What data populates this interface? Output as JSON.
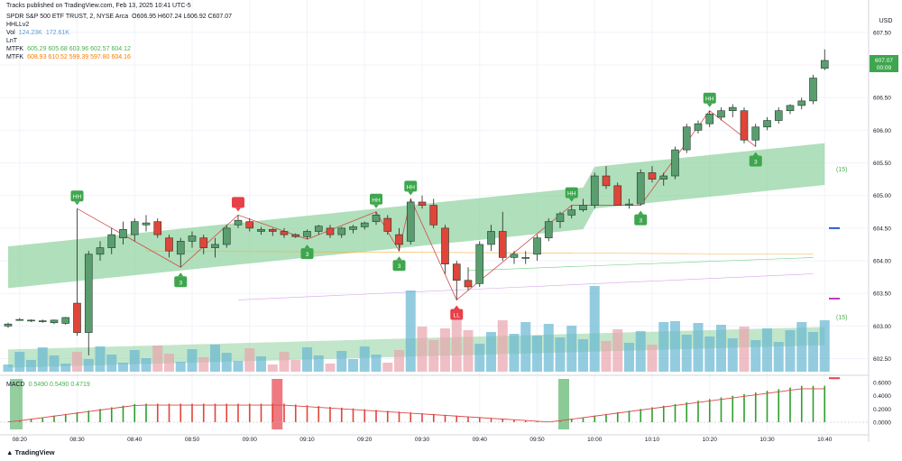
{
  "header": {
    "published": "Tracks published on TradingView.com, Feb 13, 2025 10:41 UTC-5",
    "symbol_line": "SPDR S&P 500 ETF TRUST, 2, NYSE Arca",
    "ohlc": "O606.95 H607.24 L606.92 C607.07",
    "ind1": "HHLLv2",
    "vol_label": "Vol",
    "vol_val1": "124.23K",
    "vol_val2": "172.61K",
    "ind3": "LnT",
    "mtfk1_label": "MTFK",
    "mtfk1_vals": "605.29 605.68 603.96 602.57 604.12",
    "mtfk2_label": "MTFK",
    "mtfk2_vals": "608.93 610.52 599.39 597.80 604.16",
    "macd_label": "MACD",
    "macd_vals": "0.5490 0.5490 0.4719"
  },
  "price_axis": {
    "currency": "USD",
    "ticks": [
      "607.50",
      "607.00",
      "606.50",
      "606.00",
      "605.50",
      "605.00",
      "604.50",
      "604.00",
      "603.50",
      "603.00",
      "602.50"
    ],
    "last_price": "607.07",
    "countdown": "00:09"
  },
  "macd_axis": {
    "ticks": [
      "0.6000",
      "0.4000",
      "0.2000",
      "0.0000"
    ]
  },
  "time_axis": {
    "ticks": [
      "08:20",
      "08:30",
      "08:40",
      "08:50",
      "09:00",
      "09:10",
      "09:20",
      "09:30",
      "09:40",
      "09:50",
      "10:00",
      "10:10",
      "10:20",
      "10:30",
      "10:40"
    ]
  },
  "band_labels": {
    "upper": "(15)",
    "lower": "(15)"
  },
  "footer": {
    "brand": "TradingView"
  },
  "colors": {
    "up": "#5a9e6f",
    "down": "#e0453a",
    "band": "#8fd19e",
    "vol_blue": "#67b7d1",
    "vol_pink": "#e8a4ad",
    "macd_up": "#2ca02c",
    "macd_down": "#e0453a",
    "signal": "#d84a4a"
  },
  "chart_data": {
    "type": "candlestick",
    "y_range": [
      602.3,
      607.72
    ],
    "candles": [
      {
        "t": "08:18",
        "o": 603.0,
        "h": 603.05,
        "l": 602.97,
        "c": 603.03
      },
      {
        "t": "08:20",
        "o": 603.1,
        "h": 603.12,
        "l": 603.08,
        "c": 603.1
      },
      {
        "t": "08:22",
        "o": 603.08,
        "h": 603.1,
        "l": 603.06,
        "c": 603.09
      },
      {
        "t": "08:24",
        "o": 603.07,
        "h": 603.1,
        "l": 603.05,
        "c": 603.08
      },
      {
        "t": "08:26",
        "o": 603.05,
        "h": 603.1,
        "l": 603.03,
        "c": 603.09
      },
      {
        "t": "08:28",
        "o": 603.04,
        "h": 603.14,
        "l": 603.02,
        "c": 603.13
      },
      {
        "t": "08:30",
        "o": 603.35,
        "h": 604.8,
        "l": 602.85,
        "c": 602.9
      },
      {
        "t": "08:32",
        "o": 602.9,
        "h": 604.15,
        "l": 602.55,
        "c": 604.1
      },
      {
        "t": "08:34",
        "o": 604.1,
        "h": 604.3,
        "l": 604.0,
        "c": 604.2
      },
      {
        "t": "08:36",
        "o": 604.2,
        "h": 604.5,
        "l": 604.1,
        "c": 604.4
      },
      {
        "t": "08:38",
        "o": 604.35,
        "h": 604.6,
        "l": 604.25,
        "c": 604.48
      },
      {
        "t": "08:40",
        "o": 604.4,
        "h": 604.65,
        "l": 604.3,
        "c": 604.6
      },
      {
        "t": "08:42",
        "o": 604.55,
        "h": 604.7,
        "l": 604.45,
        "c": 604.58
      },
      {
        "t": "08:44",
        "o": 604.6,
        "h": 604.65,
        "l": 604.35,
        "c": 604.4
      },
      {
        "t": "08:46",
        "o": 604.35,
        "h": 604.4,
        "l": 604.05,
        "c": 604.15
      },
      {
        "t": "08:48",
        "o": 604.1,
        "h": 604.35,
        "l": 603.9,
        "c": 604.3
      },
      {
        "t": "08:50",
        "o": 604.3,
        "h": 604.45,
        "l": 604.2,
        "c": 604.38
      },
      {
        "t": "08:52",
        "o": 604.35,
        "h": 604.4,
        "l": 604.1,
        "c": 604.2
      },
      {
        "t": "08:54",
        "o": 604.2,
        "h": 604.35,
        "l": 604.05,
        "c": 604.25
      },
      {
        "t": "08:56",
        "o": 604.25,
        "h": 604.55,
        "l": 604.2,
        "c": 604.5
      },
      {
        "t": "08:58",
        "o": 604.55,
        "h": 604.7,
        "l": 604.5,
        "c": 604.62
      },
      {
        "t": "09:00",
        "o": 604.6,
        "h": 604.65,
        "l": 604.45,
        "c": 604.5
      },
      {
        "t": "09:02",
        "o": 604.45,
        "h": 604.52,
        "l": 604.4,
        "c": 604.48
      },
      {
        "t": "09:04",
        "o": 604.48,
        "h": 604.5,
        "l": 604.38,
        "c": 604.45
      },
      {
        "t": "09:06",
        "o": 604.45,
        "h": 604.5,
        "l": 604.35,
        "c": 604.4
      },
      {
        "t": "09:08",
        "o": 604.4,
        "h": 604.42,
        "l": 604.35,
        "c": 604.37
      },
      {
        "t": "09:10",
        "o": 604.37,
        "h": 604.48,
        "l": 604.33,
        "c": 604.45
      },
      {
        "t": "09:12",
        "o": 604.45,
        "h": 604.55,
        "l": 604.4,
        "c": 604.53
      },
      {
        "t": "09:14",
        "o": 604.5,
        "h": 604.55,
        "l": 604.35,
        "c": 604.4
      },
      {
        "t": "09:16",
        "o": 604.4,
        "h": 604.52,
        "l": 604.35,
        "c": 604.5
      },
      {
        "t": "09:18",
        "o": 604.48,
        "h": 604.55,
        "l": 604.42,
        "c": 604.52
      },
      {
        "t": "09:20",
        "o": 604.52,
        "h": 604.6,
        "l": 604.48,
        "c": 604.58
      },
      {
        "t": "09:22",
        "o": 604.6,
        "h": 604.75,
        "l": 604.55,
        "c": 604.7
      },
      {
        "t": "09:24",
        "o": 604.65,
        "h": 604.7,
        "l": 604.4,
        "c": 604.45
      },
      {
        "t": "09:26",
        "o": 604.4,
        "h": 604.5,
        "l": 604.15,
        "c": 604.25
      },
      {
        "t": "09:28",
        "o": 604.3,
        "h": 604.95,
        "l": 604.25,
        "c": 604.9
      },
      {
        "t": "09:30",
        "o": 604.9,
        "h": 605.0,
        "l": 604.8,
        "c": 604.85
      },
      {
        "t": "09:32",
        "o": 604.85,
        "h": 604.95,
        "l": 604.5,
        "c": 604.55
      },
      {
        "t": "09:34",
        "o": 604.5,
        "h": 604.55,
        "l": 603.8,
        "c": 603.95
      },
      {
        "t": "09:36",
        "o": 603.95,
        "h": 604.0,
        "l": 603.4,
        "c": 603.7
      },
      {
        "t": "09:38",
        "o": 603.7,
        "h": 603.9,
        "l": 603.55,
        "c": 603.6
      },
      {
        "t": "09:40",
        "o": 603.65,
        "h": 604.3,
        "l": 603.6,
        "c": 604.25
      },
      {
        "t": "09:42",
        "o": 604.25,
        "h": 604.55,
        "l": 604.15,
        "c": 604.45
      },
      {
        "t": "09:44",
        "o": 604.45,
        "h": 604.75,
        "l": 604.0,
        "c": 604.05
      },
      {
        "t": "09:46",
        "o": 604.05,
        "h": 604.15,
        "l": 603.95,
        "c": 604.1
      },
      {
        "t": "09:48",
        "o": 604.05,
        "h": 604.15,
        "l": 603.95,
        "c": 604.05
      },
      {
        "t": "09:50",
        "o": 604.1,
        "h": 604.4,
        "l": 604.0,
        "c": 604.35
      },
      {
        "t": "09:52",
        "o": 604.35,
        "h": 604.65,
        "l": 604.3,
        "c": 604.6
      },
      {
        "t": "09:54",
        "o": 604.6,
        "h": 604.75,
        "l": 604.5,
        "c": 604.72
      },
      {
        "t": "09:56",
        "o": 604.7,
        "h": 604.85,
        "l": 604.65,
        "c": 604.78
      },
      {
        "t": "09:58",
        "o": 604.78,
        "h": 604.95,
        "l": 604.75,
        "c": 604.85
      },
      {
        "t": "10:00",
        "o": 604.85,
        "h": 605.35,
        "l": 604.8,
        "c": 605.3
      },
      {
        "t": "10:02",
        "o": 605.3,
        "h": 605.45,
        "l": 605.1,
        "c": 605.15
      },
      {
        "t": "10:04",
        "o": 605.15,
        "h": 605.2,
        "l": 604.9,
        "c": 604.85
      },
      {
        "t": "10:06",
        "o": 604.85,
        "h": 604.95,
        "l": 604.8,
        "c": 604.87
      },
      {
        "t": "10:08",
        "o": 604.87,
        "h": 605.4,
        "l": 604.85,
        "c": 605.35
      },
      {
        "t": "10:10",
        "o": 605.35,
        "h": 605.45,
        "l": 605.2,
        "c": 605.25
      },
      {
        "t": "10:12",
        "o": 605.25,
        "h": 605.35,
        "l": 605.15,
        "c": 605.3
      },
      {
        "t": "10:14",
        "o": 605.3,
        "h": 605.75,
        "l": 605.25,
        "c": 605.7
      },
      {
        "t": "10:16",
        "o": 605.7,
        "h": 606.1,
        "l": 605.65,
        "c": 606.05
      },
      {
        "t": "10:18",
        "o": 606.0,
        "h": 606.15,
        "l": 605.95,
        "c": 606.1
      },
      {
        "t": "10:20",
        "o": 606.1,
        "h": 606.3,
        "l": 606.05,
        "c": 606.25
      },
      {
        "t": "10:22",
        "o": 606.2,
        "h": 606.35,
        "l": 606.15,
        "c": 606.3
      },
      {
        "t": "10:24",
        "o": 606.3,
        "h": 606.4,
        "l": 606.2,
        "c": 606.35
      },
      {
        "t": "10:26",
        "o": 606.3,
        "h": 606.35,
        "l": 605.8,
        "c": 605.85
      },
      {
        "t": "10:28",
        "o": 605.85,
        "h": 606.1,
        "l": 605.75,
        "c": 606.05
      },
      {
        "t": "10:30",
        "o": 606.05,
        "h": 606.2,
        "l": 606.0,
        "c": 606.15
      },
      {
        "t": "10:32",
        "o": 606.15,
        "h": 606.35,
        "l": 606.1,
        "c": 606.3
      },
      {
        "t": "10:34",
        "o": 606.3,
        "h": 606.4,
        "l": 606.25,
        "c": 606.38
      },
      {
        "t": "10:36",
        "o": 606.38,
        "h": 606.5,
        "l": 606.32,
        "c": 606.45
      },
      {
        "t": "10:38",
        "o": 606.45,
        "h": 606.85,
        "l": 606.4,
        "c": 606.8
      },
      {
        "t": "10:40",
        "o": 606.95,
        "h": 607.24,
        "l": 606.92,
        "c": 607.07
      }
    ],
    "markers": [
      {
        "label": "HH",
        "idx": 6,
        "pos": "high"
      },
      {
        "label": "",
        "idx": 20,
        "pos": "high"
      },
      {
        "label": "HH",
        "idx": 32,
        "pos": "high"
      },
      {
        "label": "HH",
        "idx": 35,
        "pos": "high"
      },
      {
        "label": "HH",
        "idx": 49,
        "pos": "high"
      },
      {
        "label": "HH",
        "idx": 61,
        "pos": "high"
      },
      {
        "label": "3",
        "idx": 15,
        "pos": "low"
      },
      {
        "label": "3",
        "idx": 26,
        "pos": "low"
      },
      {
        "label": "3",
        "idx": 34,
        "pos": "low"
      },
      {
        "label": "LL",
        "idx": 39,
        "pos": "low"
      },
      {
        "label": "3",
        "idx": 55,
        "pos": "low"
      },
      {
        "label": "3",
        "idx": 65,
        "pos": "low"
      }
    ]
  }
}
